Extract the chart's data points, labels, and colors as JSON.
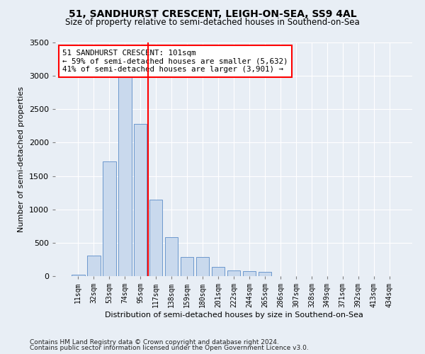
{
  "title_line1": "51, SANDHURST CRESCENT, LEIGH-ON-SEA, SS9 4AL",
  "title_line2": "Size of property relative to semi-detached houses in Southend-on-Sea",
  "xlabel": "Distribution of semi-detached houses by size in Southend-on-Sea",
  "ylabel": "Number of semi-detached properties",
  "categories": [
    "11sqm",
    "32sqm",
    "53sqm",
    "74sqm",
    "95sqm",
    "117sqm",
    "138sqm",
    "159sqm",
    "180sqm",
    "201sqm",
    "222sqm",
    "244sqm",
    "265sqm",
    "286sqm",
    "307sqm",
    "328sqm",
    "349sqm",
    "371sqm",
    "392sqm",
    "413sqm",
    "434sqm"
  ],
  "values": [
    20,
    310,
    1720,
    3000,
    2280,
    1150,
    580,
    290,
    290,
    135,
    80,
    70,
    60,
    0,
    0,
    0,
    0,
    0,
    0,
    0,
    0
  ],
  "bar_color": "#c9d9ed",
  "bar_edge_color": "#5b8cc8",
  "vline_color": "red",
  "annotation_text": "51 SANDHURST CRESCENT: 101sqm\n← 59% of semi-detached houses are smaller (5,632)\n41% of semi-detached houses are larger (3,901) →",
  "annotation_box_color": "white",
  "annotation_box_edge": "red",
  "ylim": [
    0,
    3500
  ],
  "yticks": [
    0,
    500,
    1000,
    1500,
    2000,
    2500,
    3000,
    3500
  ],
  "footnote1": "Contains HM Land Registry data © Crown copyright and database right 2024.",
  "footnote2": "Contains public sector information licensed under the Open Government Licence v3.0.",
  "bg_color": "#e8eef5",
  "plot_bg_color": "#e8eef5",
  "grid_color": "white"
}
